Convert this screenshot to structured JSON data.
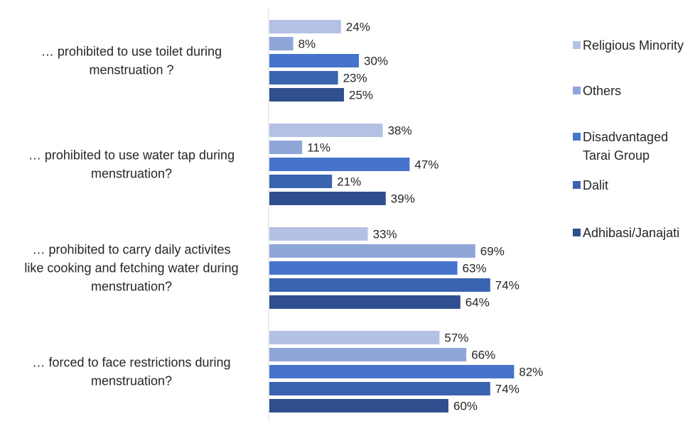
{
  "chart_data": {
    "type": "bar",
    "orientation": "horizontal",
    "title": "",
    "xlabel": "",
    "ylabel": "",
    "xlim": [
      0,
      100
    ],
    "grid": false,
    "legend_position": "right",
    "categories": [
      [
        "… prohibited to use toilet during",
        "menstruation ?"
      ],
      [
        "… prohibited  to use water tap during",
        "menstruation?"
      ],
      [
        "… prohibited  to carry daily activites",
        "like cooking and fetching water during",
        "menstruation?"
      ],
      [
        "… forced to face restrictions during",
        "menstruation?"
      ]
    ],
    "series": [
      {
        "name": [
          "Religious Minority"
        ],
        "color": "#b4c1e4",
        "values": [
          24,
          38,
          33,
          57
        ]
      },
      {
        "name": [
          "Others"
        ],
        "color": "#8fa6d9",
        "values": [
          8,
          11,
          69,
          66
        ]
      },
      {
        "name": [
          "Disadvantaged",
          "Tarai Group"
        ],
        "color": "#4674cc",
        "values": [
          30,
          47,
          63,
          82
        ]
      },
      {
        "name": [
          "Dalit"
        ],
        "color": "#3a63b0",
        "values": [
          23,
          21,
          74,
          74
        ]
      },
      {
        "name": [
          "Adhibasi/Janajati"
        ],
        "color": "#2f4f8f",
        "values": [
          25,
          39,
          64,
          60
        ]
      }
    ],
    "value_suffix": "%"
  }
}
